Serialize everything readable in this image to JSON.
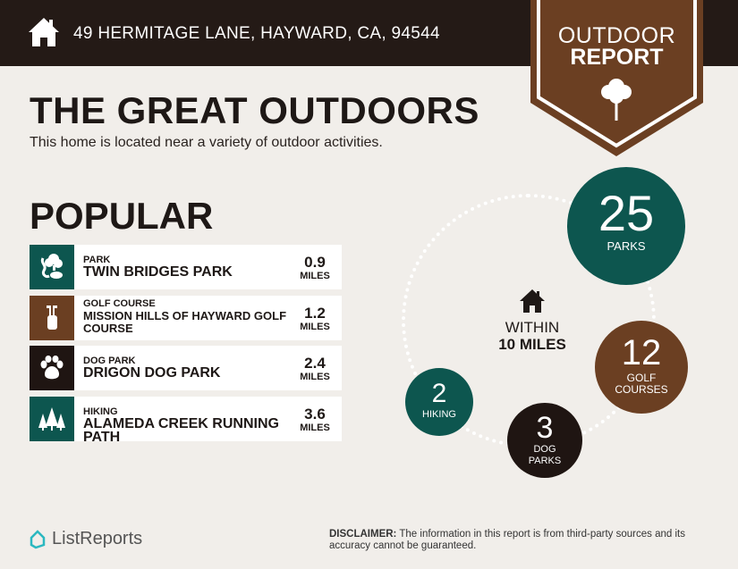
{
  "header": {
    "address": "49 HERMITAGE LANE, HAYWARD, CA, 94544",
    "icon": "home-icon"
  },
  "badge": {
    "line1": "OUTDOOR",
    "line2": "REPORT",
    "icon": "tree-icon"
  },
  "title": "THE GREAT OUTDOORS",
  "subtitle": "This home is located near a variety of outdoor activities.",
  "popular": {
    "heading": "POPULAR",
    "items": [
      {
        "category": "PARK",
        "name": "TWIN BRIDGES PARK",
        "distance": "0.9",
        "unit": "MILES",
        "icon": "park-icon",
        "color": "#0d564f"
      },
      {
        "category": "GOLF COURSE",
        "name": "MISSION HILLS OF HAYWARD GOLF COURSE",
        "distance": "1.2",
        "unit": "MILES",
        "icon": "golf-bag-icon",
        "color": "#6b3f22"
      },
      {
        "category": "DOG PARK",
        "name": "DRIGON DOG PARK",
        "distance": "2.4",
        "unit": "MILES",
        "icon": "paw-icon",
        "color": "#1f1512"
      },
      {
        "category": "HIKING",
        "name": "ALAMEDA CREEK RUNNING PATH",
        "distance": "3.6",
        "unit": "MILES",
        "icon": "pine-trees-icon",
        "color": "#0d564f"
      }
    ]
  },
  "summary": {
    "within_line1": "WITHIN",
    "within_line2": "10 MILES",
    "counts": [
      {
        "value": "25",
        "label": "PARKS",
        "color": "#0d564f"
      },
      {
        "value": "12",
        "label": "GOLF COURSES",
        "color": "#6b3f22"
      },
      {
        "value": "3",
        "label": "DOG PARKS",
        "color": "#1f1512"
      },
      {
        "value": "2",
        "label": "HIKING",
        "color": "#0d564f"
      }
    ]
  },
  "footer": {
    "logo": "ListReports",
    "disclaimer_label": "DISCLAIMER:",
    "disclaimer": " The information in this report is from third-party sources and its accuracy cannot be guaranteed."
  }
}
